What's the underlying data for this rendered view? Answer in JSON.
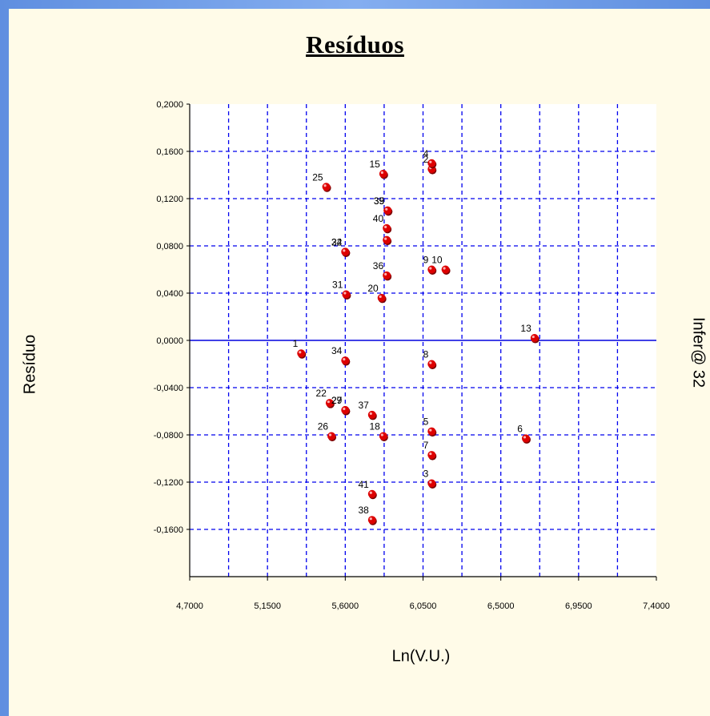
{
  "chart_data": {
    "type": "scatter",
    "title": "Resíduos",
    "xlabel": "Ln(V.U.)",
    "ylabel": "Resíduo",
    "watermark": "Infer@ 32",
    "xlim": [
      4.7,
      7.4
    ],
    "ylim": [
      -0.2,
      0.2
    ],
    "x_ticks": [
      "4,7000",
      "5,1500",
      "5,6000",
      "6,0500",
      "6,5000",
      "6,9500",
      "7,4000"
    ],
    "y_ticks": [
      "0,2000",
      "0,1600",
      "0,1200",
      "0,0800",
      "0,0400",
      "0,0000",
      "-0,0400",
      "-0,0800",
      "-0,1200",
      "-0,1600"
    ],
    "grid": true,
    "colors": {
      "point": "#dd0000",
      "grid": "#0000ee",
      "zero_line": "#0000dd",
      "axis": "#000000"
    },
    "points": [
      {
        "label": "1",
        "x": 5.345,
        "y": -0.011
      },
      {
        "label": "2",
        "x": 6.1,
        "y": 0.145
      },
      {
        "label": "3",
        "x": 6.1,
        "y": -0.121
      },
      {
        "label": "4",
        "x": 6.1,
        "y": 0.15
      },
      {
        "label": "5",
        "x": 6.1,
        "y": -0.077
      },
      {
        "label": "6",
        "x": 6.645,
        "y": -0.083
      },
      {
        "label": "7",
        "x": 6.1,
        "y": -0.097
      },
      {
        "label": "8",
        "x": 6.1,
        "y": -0.02
      },
      {
        "label": "9",
        "x": 6.1,
        "y": 0.06
      },
      {
        "label": "10",
        "x": 6.18,
        "y": 0.06
      },
      {
        "label": "13",
        "x": 6.695,
        "y": 0.002
      },
      {
        "label": "15",
        "x": 5.82,
        "y": 0.141
      },
      {
        "label": "18",
        "x": 5.82,
        "y": -0.081
      },
      {
        "label": "20",
        "x": 5.81,
        "y": 0.036
      },
      {
        "label": "22",
        "x": 5.51,
        "y": -0.053
      },
      {
        "label": "24",
        "x": 5.6,
        "y": 0.075
      },
      {
        "label": "25",
        "x": 5.49,
        "y": 0.13
      },
      {
        "label": "26",
        "x": 5.52,
        "y": -0.081
      },
      {
        "label": "27",
        "x": 5.6,
        "y": -0.059
      },
      {
        "label": "29",
        "x": 5.6,
        "y": -0.059
      },
      {
        "label": "31",
        "x": 5.605,
        "y": 0.039
      },
      {
        "label": "32",
        "x": 5.6,
        "y": 0.075
      },
      {
        "label": "34",
        "x": 5.6,
        "y": -0.017
      },
      {
        "label": "35",
        "x": 5.845,
        "y": 0.11
      },
      {
        "label": "36",
        "x": 5.84,
        "y": 0.055
      },
      {
        "label": "37",
        "x": 5.755,
        "y": -0.063
      },
      {
        "label": "38",
        "x": 5.755,
        "y": -0.152
      },
      {
        "label": "39",
        "x": 5.845,
        "y": 0.11
      },
      {
        "label": "40",
        "x": 5.84,
        "y": 0.095
      },
      {
        "label": "41",
        "x": 5.755,
        "y": -0.13
      },
      {
        "label": "",
        "x": 5.84,
        "y": 0.085
      }
    ],
    "label_offsets_note": ""
  }
}
